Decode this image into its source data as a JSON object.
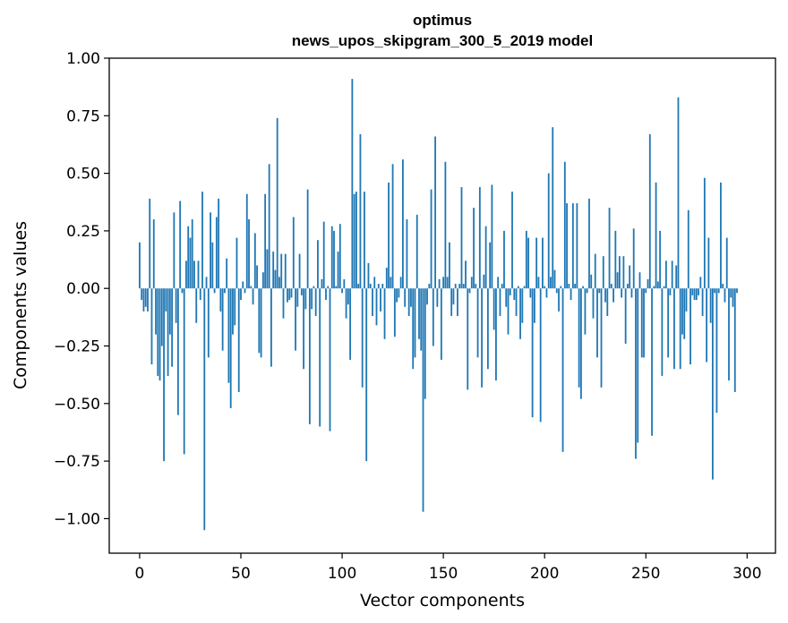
{
  "chart_data": {
    "type": "bar",
    "title": "optimus",
    "subtitle": "news_upos_skipgram_300_5_2019 model",
    "xlabel": "Vector components",
    "ylabel": "Components values",
    "xlim": [
      -15,
      314
    ],
    "ylim": [
      -1.15,
      1.0
    ],
    "xticks": [
      0,
      50,
      100,
      150,
      200,
      250,
      300
    ],
    "xtick_labels": [
      "0",
      "50",
      "100",
      "150",
      "200",
      "250",
      "300"
    ],
    "yticks": [
      1.0,
      0.75,
      0.5,
      0.25,
      0.0,
      -0.25,
      -0.5,
      -0.75,
      -1.0
    ],
    "ytick_labels": [
      "1.00",
      "0.75",
      "0.50",
      "0.25",
      "0.00",
      "−0.25",
      "−0.50",
      "−0.75",
      "−1.00"
    ],
    "bar_color": "#1f77b4",
    "values": [
      0.2,
      -0.05,
      -0.1,
      -0.08,
      -0.1,
      0.39,
      -0.33,
      0.3,
      -0.2,
      -0.38,
      -0.4,
      -0.25,
      -0.75,
      -0.1,
      -0.38,
      -0.2,
      -0.34,
      0.33,
      -0.15,
      -0.55,
      0.38,
      -0.02,
      -0.72,
      0.12,
      0.27,
      0.22,
      0.3,
      0.12,
      -0.15,
      0.12,
      -0.05,
      0.42,
      -1.05,
      0.05,
      -0.3,
      0.33,
      0.2,
      -0.02,
      0.31,
      0.39,
      -0.1,
      -0.27,
      -0.02,
      0.13,
      -0.41,
      -0.52,
      -0.2,
      -0.16,
      0.22,
      -0.45,
      -0.05,
      0.03,
      -0.02,
      0.41,
      0.3,
      0.01,
      -0.07,
      0.24,
      0.1,
      -0.28,
      -0.3,
      0.07,
      0.41,
      0.17,
      0.54,
      -0.34,
      0.16,
      0.08,
      0.74,
      0.05,
      0.15,
      -0.13,
      0.15,
      -0.06,
      -0.05,
      -0.04,
      0.31,
      -0.27,
      -0.08,
      0.15,
      -0.03,
      -0.35,
      -0.09,
      0.43,
      -0.59,
      -0.09,
      0.01,
      -0.12,
      0.21,
      -0.6,
      0.04,
      0.29,
      -0.05,
      0.01,
      -0.62,
      0.27,
      0.25,
      0.01,
      0.16,
      0.28,
      -0.02,
      0.04,
      -0.13,
      -0.07,
      -0.31,
      0.91,
      0.41,
      0.42,
      0.02,
      0.67,
      -0.43,
      0.42,
      -0.75,
      0.11,
      0.02,
      -0.12,
      0.05,
      -0.16,
      0.02,
      -0.1,
      0.02,
      -0.22,
      0.09,
      0.46,
      0.05,
      0.54,
      -0.21,
      -0.06,
      -0.04,
      0.05,
      0.56,
      -0.08,
      0.3,
      -0.12,
      -0.08,
      -0.35,
      -0.3,
      0.32,
      -0.22,
      -0.27,
      -0.97,
      -0.48,
      -0.07,
      0.02,
      0.43,
      -0.25,
      0.66,
      -0.08,
      0.04,
      -0.31,
      0.05,
      0.55,
      0.05,
      0.2,
      -0.12,
      -0.07,
      0.02,
      -0.12,
      0.02,
      0.44,
      0.02,
      0.12,
      -0.44,
      -0.02,
      0.05,
      0.35,
      0.02,
      -0.3,
      0.44,
      -0.43,
      0.06,
      0.27,
      -0.35,
      0.2,
      0.45,
      -0.18,
      -0.4,
      0.05,
      -0.12,
      0.02,
      0.25,
      -0.08,
      -0.2,
      -0.03,
      0.42,
      -0.05,
      -0.12,
      0.01,
      -0.22,
      -0.15,
      0.01,
      0.25,
      0.22,
      -0.04,
      -0.56,
      -0.15,
      0.22,
      0.05,
      -0.58,
      0.22,
      0.01,
      -0.04,
      0.5,
      0.05,
      0.7,
      0.08,
      -0.02,
      -0.1,
      0.01,
      -0.71,
      0.55,
      0.37,
      0.02,
      -0.05,
      0.37,
      0.02,
      0.37,
      -0.43,
      -0.48,
      0.01,
      -0.2,
      -0.02,
      0.39,
      0.06,
      -0.13,
      0.15,
      -0.3,
      -0.02,
      -0.43,
      0.14,
      -0.06,
      -0.12,
      0.35,
      0.02,
      -0.06,
      0.25,
      0.07,
      0.14,
      -0.04,
      0.14,
      -0.24,
      0.02,
      0.1,
      -0.04,
      0.26,
      -0.74,
      -0.67,
      0.07,
      -0.3,
      -0.3,
      -0.02,
      0.04,
      0.67,
      -0.64,
      0.01,
      0.46,
      0.03,
      0.25,
      -0.38,
      0.01,
      0.12,
      -0.3,
      -0.03,
      0.12,
      -0.35,
      0.1,
      0.83,
      -0.35,
      -0.2,
      -0.22,
      -0.1,
      0.34,
      -0.33,
      -0.03,
      -0.05,
      -0.05,
      -0.03,
      0.05,
      -0.12,
      0.48,
      -0.32,
      0.22,
      -0.15,
      -0.83,
      -0.02,
      -0.54,
      -0.02,
      0.46,
      0.02,
      -0.06,
      0.22,
      -0.4,
      -0.04,
      -0.08,
      -0.45,
      -0.02
    ]
  }
}
